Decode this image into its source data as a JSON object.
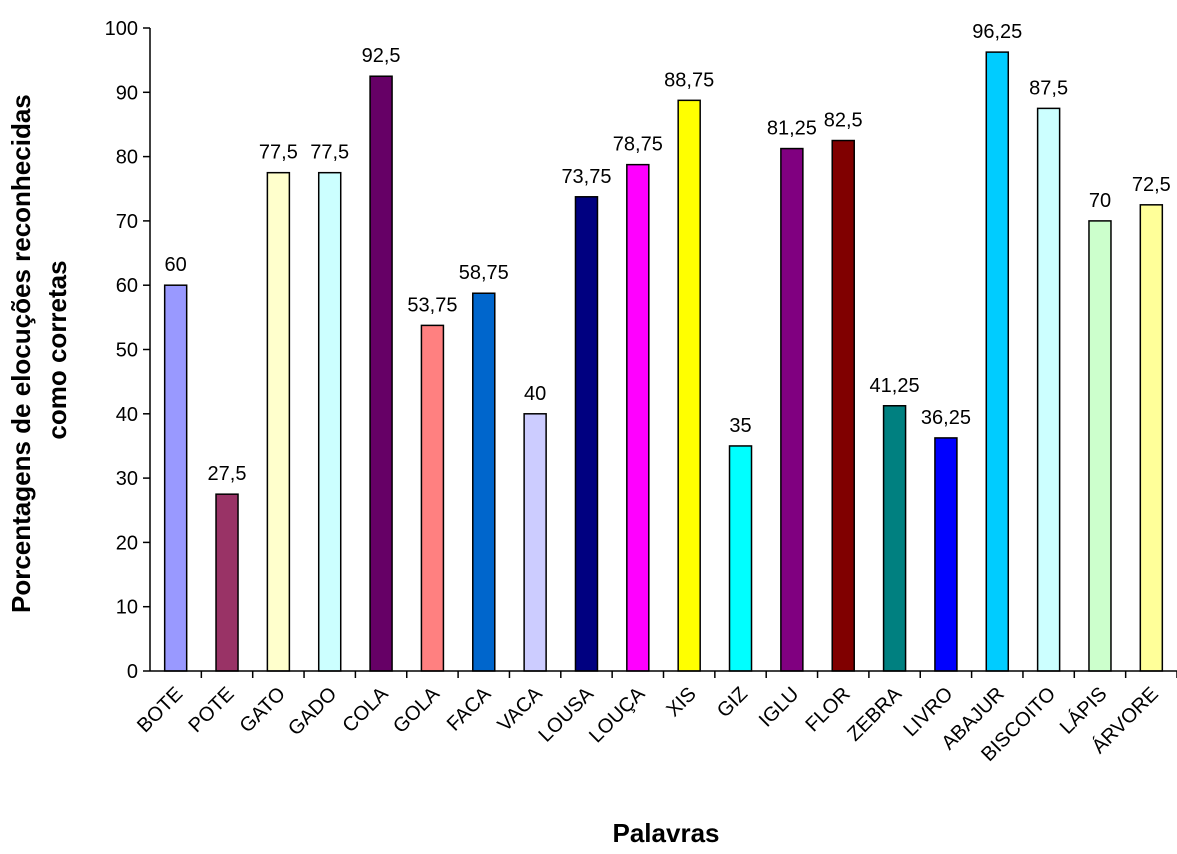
{
  "chart_data": {
    "type": "bar",
    "title": "",
    "xlabel": "Palavras",
    "ylabel_lines": [
      "Porcentagens de elocuções reconhecidas",
      "como corretas"
    ],
    "ylim": [
      0,
      100
    ],
    "yticks": [
      "0",
      "10",
      "20",
      "30",
      "40",
      "50",
      "60",
      "70",
      "80",
      "90",
      "100"
    ],
    "grid": false,
    "legend": "none",
    "categories": [
      "BOTE",
      "POTE",
      "GATO",
      "GADO",
      "COLA",
      "GOLA",
      "FACA",
      "VACA",
      "LOUSA",
      "LOUÇA",
      "XIS",
      "GIZ",
      "IGLU",
      "FLOR",
      "ZEBRA",
      "LIVRO",
      "ABAJUR",
      "BISCOITO",
      "LÁPIS",
      "ÁRVORE"
    ],
    "values": [
      60,
      27.5,
      77.5,
      77.5,
      92.5,
      53.75,
      58.75,
      40,
      73.75,
      78.75,
      88.75,
      35,
      81.25,
      82.5,
      41.25,
      36.25,
      96.25,
      87.5,
      70,
      72.5
    ],
    "value_labels": [
      "60",
      "27,5",
      "77,5",
      "77,5",
      "92,5",
      "53,75",
      "58,75",
      "40",
      "73,75",
      "78,75",
      "88,75",
      "35",
      "81,25",
      "82,5",
      "41,25",
      "36,25",
      "96,25",
      "87,5",
      "70",
      "72,5"
    ],
    "colors": [
      "#9999ff",
      "#993366",
      "#ffffcc",
      "#ccffff",
      "#660066",
      "#ff8080",
      "#0066cc",
      "#ccccff",
      "#000080",
      "#ff00ff",
      "#ffff00",
      "#00ffff",
      "#800080",
      "#800000",
      "#008080",
      "#0000ff",
      "#00ccff",
      "#ccffff",
      "#ccffcc",
      "#ffff99"
    ]
  }
}
